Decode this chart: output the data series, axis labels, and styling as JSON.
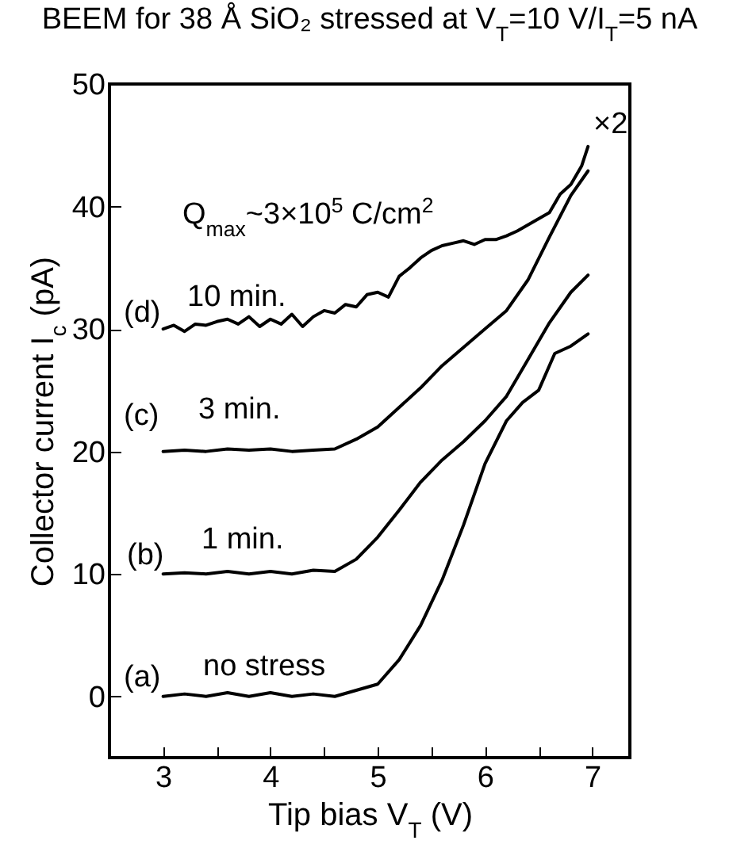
{
  "chart_data": {
    "type": "line",
    "title": "BEEM for 38 Å SiO₂ stressed at V$_{T}$=10 V/I$_{T}$=5 nA",
    "xlabel": "Tip bias V$_{T}$ (V)",
    "ylabel": "Collector current I$_{c}$ (pA)",
    "xlim": [
      2.5,
      7.35
    ],
    "ylim": [
      -5,
      50
    ],
    "xticks": [
      3,
      {
        "value": 3.5,
        "label": null
      },
      4,
      {
        "value": 4.5,
        "label": null
      },
      5,
      {
        "value": 5.5,
        "label": null
      },
      6,
      {
        "value": 6.5,
        "label": null
      },
      7
    ],
    "yticks": [
      0,
      10,
      20,
      30,
      40,
      50
    ],
    "grid": false,
    "marker": "none",
    "line_style": "solid",
    "legend": false,
    "series": [
      {
        "color": "#000000",
        "x": [
          3,
          3.2,
          3.4,
          3.6,
          3.8,
          4.0,
          4.2,
          4.4,
          4.6,
          4.8,
          5.0,
          5.2,
          5.4,
          5.6,
          5.8,
          6.0,
          6.2,
          6.35,
          6.5,
          6.65,
          6.8,
          6.96
        ],
        "values": [
          0,
          0.2,
          0,
          0.3,
          0,
          0.3,
          0,
          0.2,
          0,
          0.5,
          1,
          3,
          5.8,
          9.5,
          14,
          19,
          22.5,
          24,
          25,
          28,
          28.6,
          29.6
        ]
      },
      {
        "color": "#000000",
        "x": [
          3,
          3.2,
          3.4,
          3.6,
          3.8,
          4.0,
          4.2,
          4.4,
          4.6,
          4.8,
          5.0,
          5.2,
          5.4,
          5.6,
          5.8,
          6.0,
          6.2,
          6.4,
          6.6,
          6.8,
          6.96
        ],
        "values": [
          10,
          10.1,
          10,
          10.2,
          10,
          10.2,
          10,
          10.3,
          10.2,
          11.2,
          13,
          15.2,
          17.5,
          19.3,
          20.8,
          22.5,
          24.5,
          27.5,
          30.5,
          33,
          34.4
        ]
      },
      {
        "color": "#000000",
        "x": [
          3,
          3.2,
          3.4,
          3.6,
          3.8,
          4.0,
          4.2,
          4.4,
          4.6,
          4.8,
          5.0,
          5.2,
          5.4,
          5.6,
          5.8,
          6.0,
          6.2,
          6.4,
          6.6,
          6.8,
          6.96
        ],
        "values": [
          20,
          20.1,
          20,
          20.2,
          20.1,
          20.2,
          20,
          20.1,
          20.2,
          21,
          22,
          23.6,
          25.2,
          27,
          28.5,
          30,
          31.5,
          34,
          37.5,
          40.9,
          42.9
        ]
      },
      {
        "color": "#000000",
        "x": [
          3,
          3.1,
          3.2,
          3.3,
          3.4,
          3.5,
          3.6,
          3.7,
          3.8,
          3.9,
          4.0,
          4.1,
          4.2,
          4.3,
          4.4,
          4.5,
          4.6,
          4.7,
          4.8,
          4.9,
          5.0,
          5.1,
          5.2,
          5.3,
          5.4,
          5.5,
          5.6,
          5.7,
          5.8,
          5.9,
          6.0,
          6.1,
          6.2,
          6.3,
          6.4,
          6.5,
          6.6,
          6.7,
          6.8,
          6.9,
          6.96
        ],
        "values": [
          30,
          30.3,
          29.8,
          30.4,
          30.3,
          30.6,
          30.8,
          30.4,
          31,
          30.2,
          30.8,
          30.4,
          31.2,
          30.2,
          31,
          31.5,
          31.3,
          32,
          31.8,
          32.8,
          33,
          32.6,
          34.3,
          35,
          35.8,
          36.4,
          36.8,
          37,
          37.2,
          36.9,
          37.3,
          37.3,
          37.6,
          38,
          38.5,
          39,
          39.5,
          41,
          41.8,
          43.3,
          44.9
        ]
      }
    ],
    "annotations": [
      "(a)",
      "no stress",
      "(b)",
      "1 min.",
      "(c)",
      "3 min.",
      "(d)",
      "10 min.",
      "Q$_{max}$~3×10$^{5}$ C/cm$^{2}$",
      "×2"
    ]
  }
}
